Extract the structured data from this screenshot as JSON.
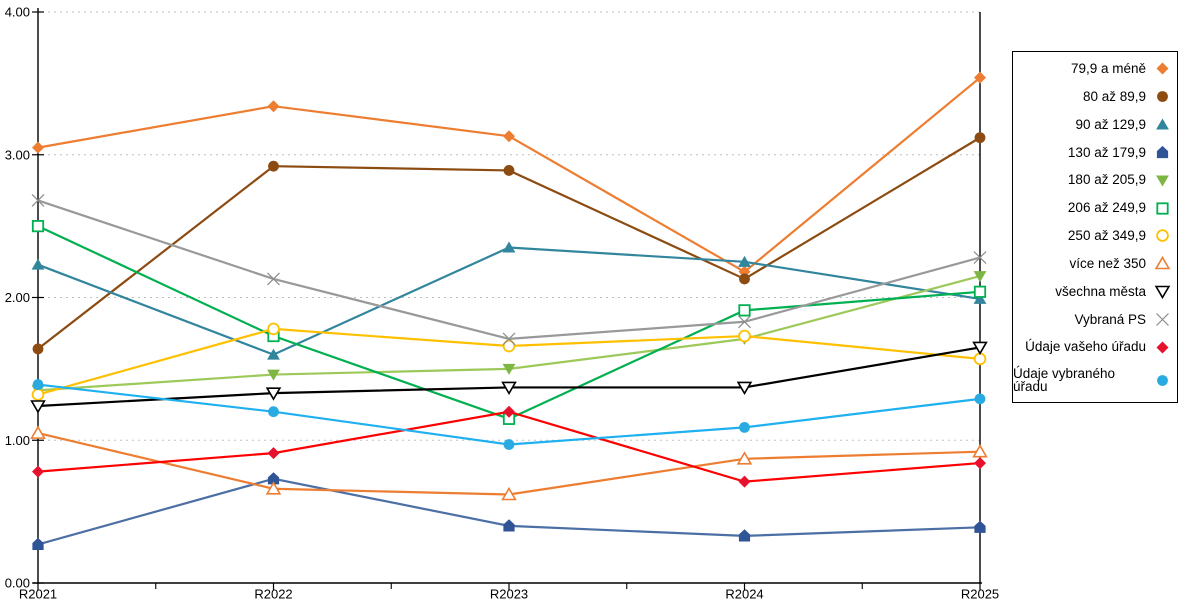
{
  "chart_data": {
    "type": "line",
    "title": "",
    "xlabel": "",
    "ylabel": "",
    "x": [
      "R2021",
      "R2022",
      "R2023",
      "R2024",
      "R2025"
    ],
    "ylim": [
      0,
      4
    ],
    "yticks": [
      "0.00",
      "1.00",
      "2.00",
      "3.00",
      "4.00"
    ],
    "grid": "horizontal-dashed",
    "legend_position": "right-box",
    "series": [
      {
        "name": "79,9 a méně",
        "marker": "diamond",
        "fill": "solid",
        "color": "#ED7D31",
        "marker_color": "#ED7D31",
        "values": [
          3.05,
          3.34,
          3.13,
          2.18,
          3.54
        ]
      },
      {
        "name": "80 až 89,9",
        "marker": "circle",
        "fill": "solid",
        "color": "#8C4B11",
        "marker_color": "#8C4B11",
        "values": [
          1.64,
          2.92,
          2.89,
          2.13,
          3.12
        ]
      },
      {
        "name": "90 až 129,9",
        "marker": "triangle-up",
        "fill": "solid",
        "color": "#31859C",
        "marker_color": "#31859C",
        "values": [
          2.23,
          1.6,
          2.35,
          2.25,
          1.99
        ]
      },
      {
        "name": "130 až 179,9",
        "marker": "pentagon",
        "fill": "solid",
        "color": "#4C6FA5",
        "marker_color": "#2F5597",
        "values": [
          0.27,
          0.73,
          0.4,
          0.33,
          0.39
        ]
      },
      {
        "name": "180 až 205,9",
        "marker": "triangle-down",
        "fill": "solid",
        "color": "#9DC85A",
        "marker_color": "#7DB643",
        "values": [
          1.35,
          1.46,
          1.5,
          1.71,
          2.15
        ]
      },
      {
        "name": "206 až 249,9",
        "marker": "square",
        "fill": "open",
        "color": "#00B050",
        "marker_color": "#00B050",
        "values": [
          2.5,
          1.73,
          1.15,
          1.91,
          2.04
        ]
      },
      {
        "name": "250 až 349,9",
        "marker": "circle",
        "fill": "open",
        "color": "#FFC000",
        "marker_color": "#FFC000",
        "values": [
          1.32,
          1.78,
          1.66,
          1.73,
          1.57
        ]
      },
      {
        "name": "více než 350",
        "marker": "triangle-up",
        "fill": "open",
        "color": "#ED7D31",
        "marker_color": "#ED7D31",
        "values": [
          1.05,
          0.66,
          0.62,
          0.87,
          0.92
        ]
      },
      {
        "name": "všechna města",
        "marker": "triangle-down",
        "fill": "open",
        "color": "#000000",
        "marker_color": "#000000",
        "values": [
          1.24,
          1.33,
          1.37,
          1.37,
          1.65
        ]
      },
      {
        "name": "Vybraná PS",
        "marker": "x",
        "fill": "open",
        "color": "#999999",
        "marker_color": "#8C8C8C",
        "values": [
          2.68,
          2.13,
          1.71,
          1.83,
          2.28
        ]
      },
      {
        "name": "Údaje vašeho úřadu",
        "marker": "diamond",
        "fill": "solid",
        "color": "#FF0000",
        "marker_color": "#E8112D",
        "values": [
          0.78,
          0.91,
          1.2,
          0.71,
          0.84
        ]
      },
      {
        "name": "Údaje vybraného úřadu",
        "marker": "circle",
        "fill": "solid",
        "color": "#1FB0F0",
        "marker_color": "#29ABE2",
        "values": [
          1.39,
          1.2,
          0.97,
          1.09,
          1.29
        ]
      }
    ]
  }
}
